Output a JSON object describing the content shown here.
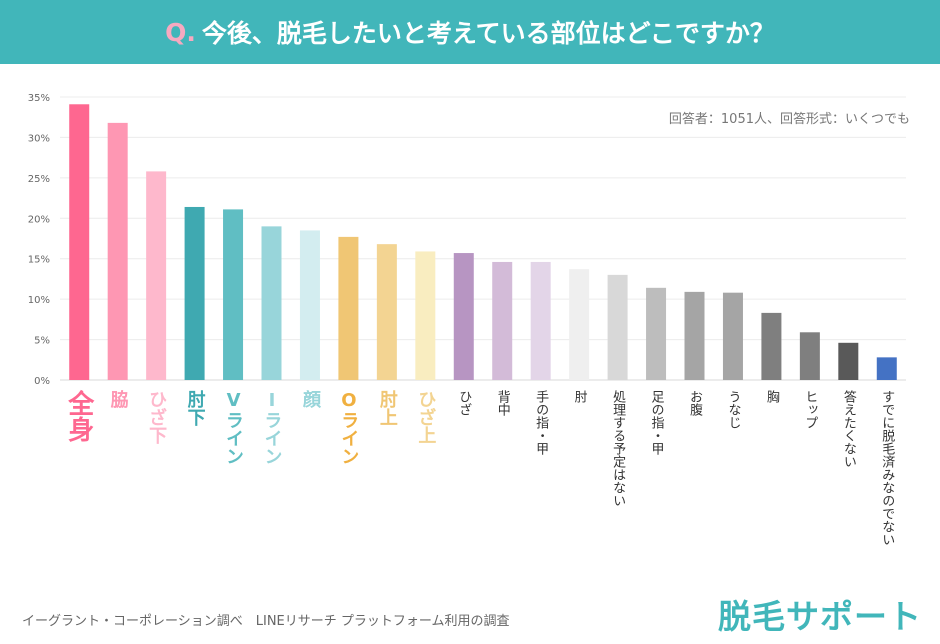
{
  "title": {
    "prefix": "Q.",
    "text": "今後、脱毛したいと考えている部位はどこですか？"
  },
  "note": "回答者：1051人、回答形式：いくつでも",
  "source": "イーグラント・コーポレーション調べ　LINEリサーチ プラットフォーム利用の調査",
  "logo": "脱毛サポート",
  "chart_data": {
    "type": "bar",
    "categories": [
      "全身",
      "脇",
      "ひざ下",
      "肘下",
      "Vライン",
      "Iライン",
      "顔",
      "Oライン",
      "肘上",
      "ひざ上",
      "ひざ",
      "背中",
      "手の指・甲",
      "肘",
      "処理する予定はない",
      "足の指・甲",
      "お腹",
      "うなじ",
      "胸",
      "ヒップ",
      "答えたくない",
      "すでに脱毛済みなのでない"
    ],
    "values": [
      34.1,
      31.8,
      25.8,
      21.4,
      21.1,
      19.0,
      18.5,
      17.7,
      16.8,
      15.9,
      15.7,
      14.6,
      14.6,
      13.7,
      13.0,
      11.4,
      10.9,
      10.8,
      8.3,
      5.9,
      4.6,
      2.8
    ],
    "colors": [
      "#fe6790",
      "#fe97b3",
      "#feb8cc",
      "#3fa9b1",
      "#60bec3",
      "#98d5da",
      "#d3edf0",
      "#f0c674",
      "#f3d492",
      "#f9edc0",
      "#b795c2",
      "#d3bbd8",
      "#e3d5e8",
      "#efefef",
      "#d8d8d8",
      "#bdbdbd",
      "#a5a5a5",
      "#a5a5a5",
      "#7f7f7f",
      "#7f7f7f",
      "#595959",
      "#4472c4"
    ],
    "label_colors": [
      "#fe6790",
      "#fe97b3",
      "#feb8cc",
      "#3fa9b1",
      "#60bec3",
      "#98d5da",
      "#98d5da",
      "#f0b040",
      "#f0c674",
      "#f3d492",
      "#333",
      "#333",
      "#333",
      "#333",
      "#333",
      "#333",
      "#333",
      "#333",
      "#333",
      "#333",
      "#333",
      "#333"
    ],
    "yticks": [
      "0%",
      "5%",
      "10%",
      "15%",
      "20%",
      "25%",
      "30%",
      "35%"
    ],
    "ylim": [
      0,
      35
    ],
    "grid": true,
    "xlabel": "",
    "ylabel": ""
  }
}
